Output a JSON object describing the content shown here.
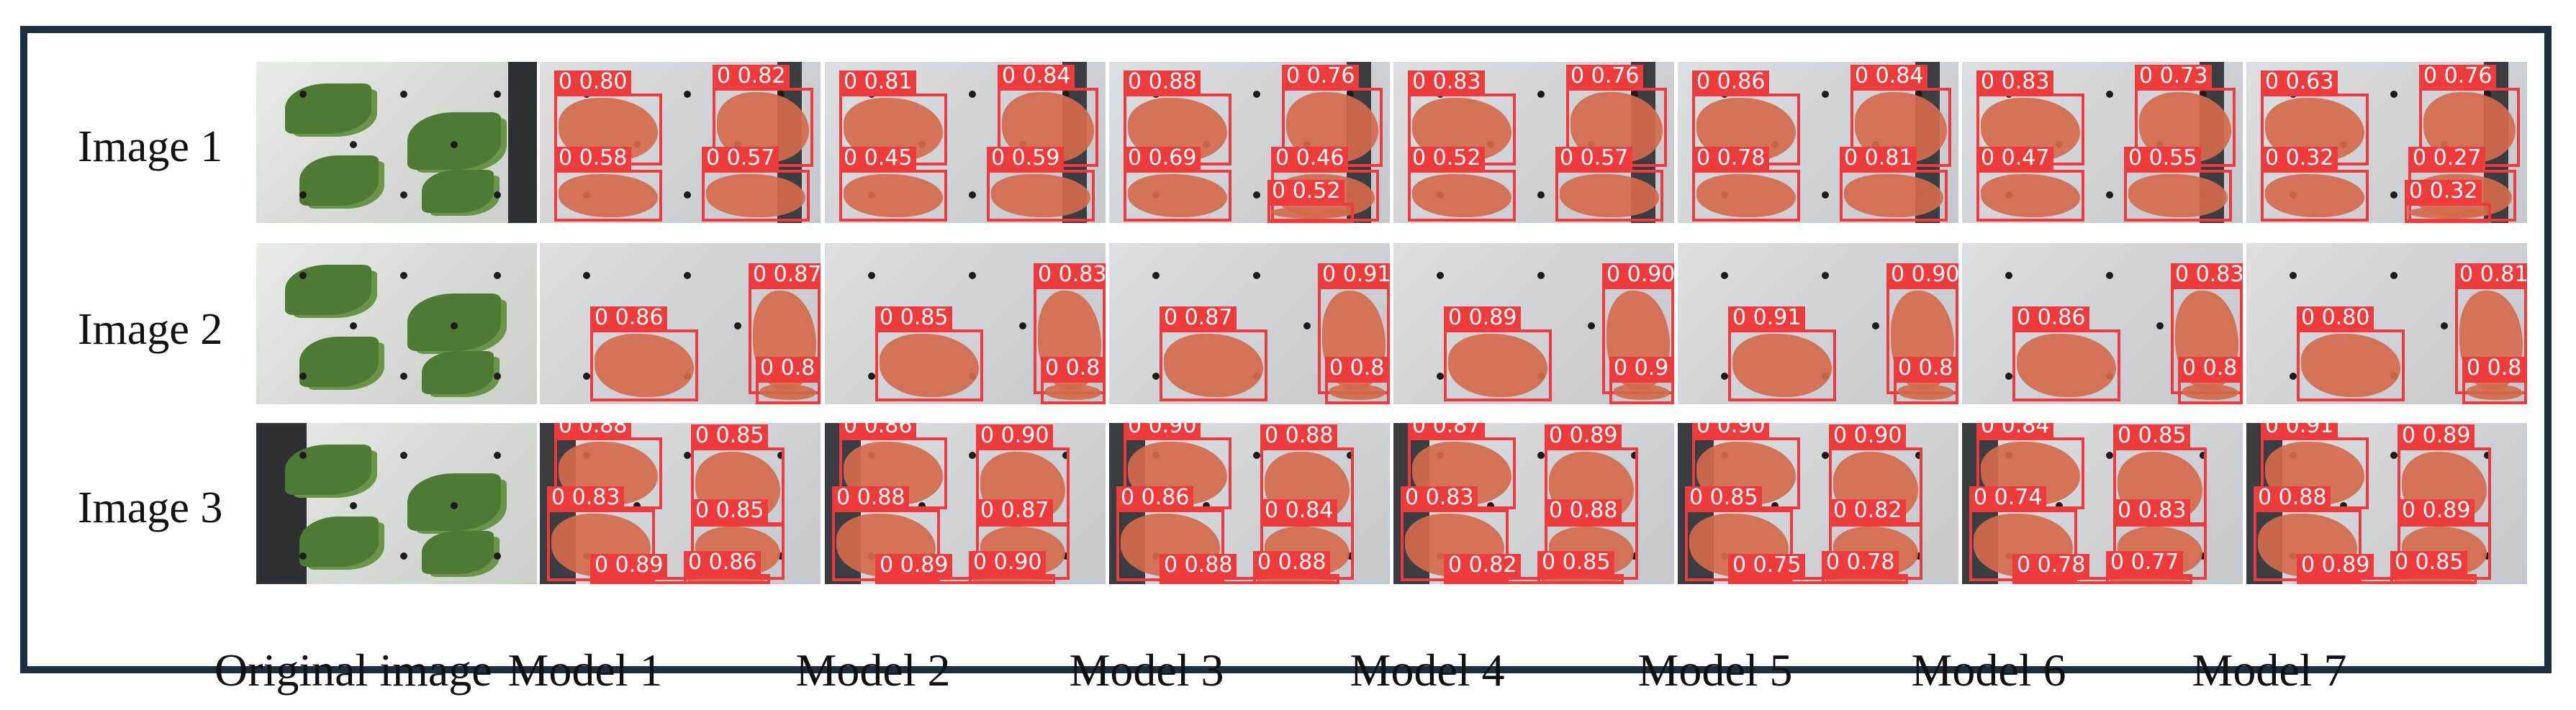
{
  "row_labels": [
    "Image 1",
    "Image 2",
    "Image 3"
  ],
  "column_labels": [
    "Original image",
    "Model 1",
    "Model 2",
    "Model 3",
    "Model 4",
    "Model 5",
    "Model 6",
    "Model 7"
  ],
  "colors": {
    "frame": "#1b2f3e",
    "box": "#ef3b3b",
    "label_text": "#ffffff",
    "plant": "#d26a4c"
  },
  "detections": [
    [
      [
        "0.80",
        "0.82",
        "0.58",
        "0.57"
      ],
      [
        "0.81",
        "0.84",
        "0.45",
        "0.59"
      ],
      [
        "0.88",
        "0.76",
        "0.69",
        "0.46",
        "0.52"
      ],
      [
        "0.83",
        "0.76",
        "0.52",
        "0.57"
      ],
      [
        "0.86",
        "0.84",
        "0.78",
        "0.81"
      ],
      [
        "0.83",
        "0.73",
        "0.47",
        "0.55"
      ],
      [
        "0.63",
        "0.76",
        "0.32",
        "0.27",
        "0.32"
      ]
    ],
    [
      [
        "0.86",
        "0.87",
        "0.8"
      ],
      [
        "0.85",
        "0.83",
        "0.8"
      ],
      [
        "0.87",
        "0.91",
        "0.8"
      ],
      [
        "0.89",
        "0.90",
        "0.9"
      ],
      [
        "0.91",
        "0.90",
        "0.8"
      ],
      [
        "0.86",
        "0.83",
        "0.8"
      ],
      [
        "0.80",
        "0.81",
        "0.8"
      ]
    ],
    [
      [
        "0.88",
        "0.85",
        "0.83",
        "0.85",
        "0.89",
        "0.86"
      ],
      [
        "0.86",
        "0.90",
        "0.88",
        "0.87",
        "0.89",
        "0.90"
      ],
      [
        "0.90",
        "0.88",
        "0.86",
        "0.84",
        "0.88",
        "0.88"
      ],
      [
        "0.87",
        "0.89",
        "0.83",
        "0.88",
        "0.82",
        "0.85"
      ],
      [
        "0.90",
        "0.90",
        "0.85",
        "0.82",
        "0.75",
        "0.78"
      ],
      [
        "0.84",
        "0.85",
        "0.74",
        "0.83",
        "0.78",
        "0.77"
      ],
      [
        "0.91",
        "0.89",
        "0.88",
        "0.89",
        "0.89",
        "0.85"
      ]
    ]
  ]
}
